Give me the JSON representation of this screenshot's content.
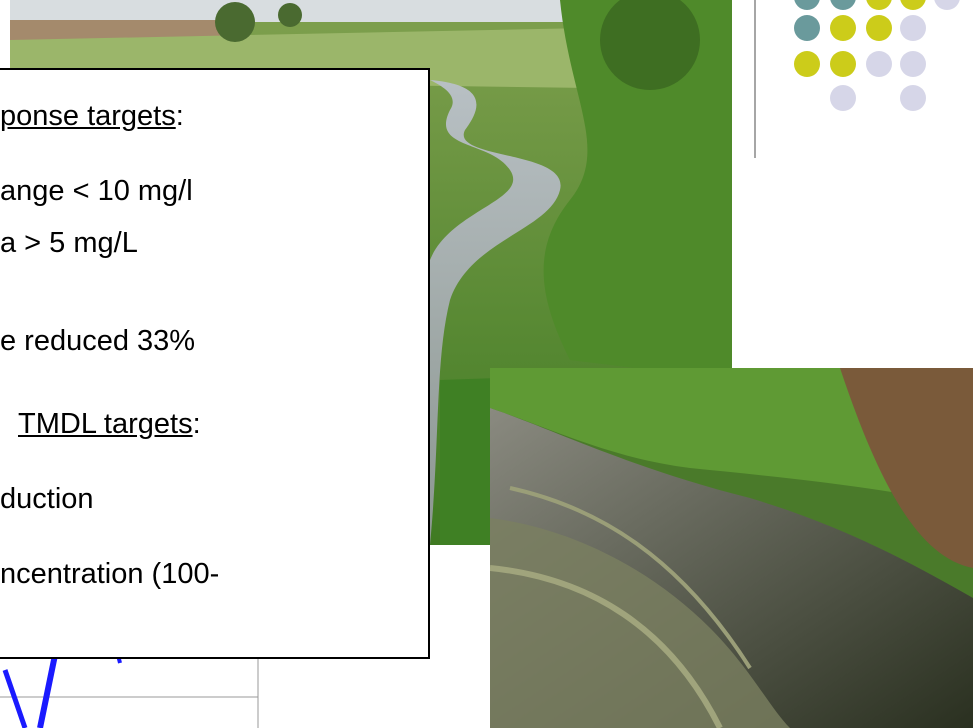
{
  "text_box": {
    "lines": [
      {
        "underlined": "ponse targets",
        "text": ":"
      },
      "ange < 10 mg/l",
      "a > 5 mg/L",
      "e reduced 33%",
      {
        "underlined": "TMDL targets",
        "text": ":"
      },
      "duction",
      "ncentration (100-"
    ]
  }
}
